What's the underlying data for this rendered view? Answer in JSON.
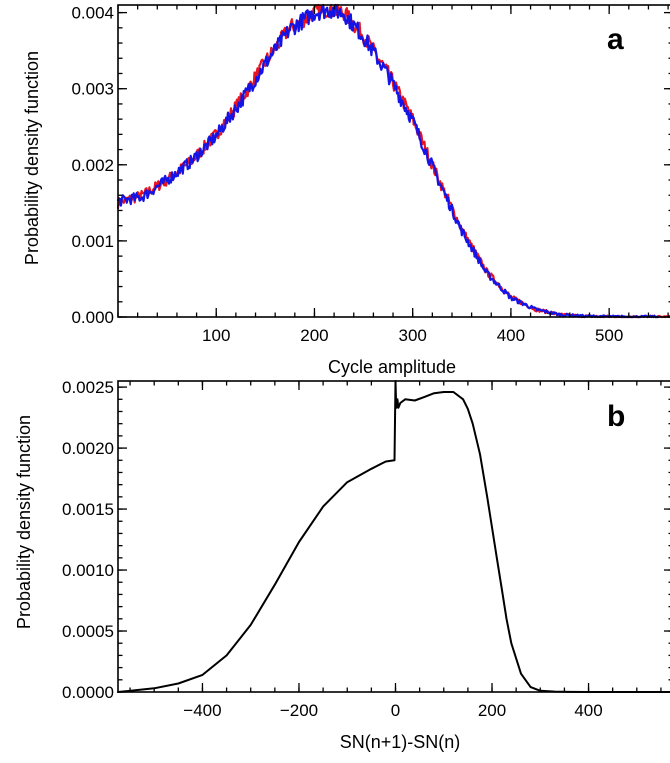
{
  "chart_data": [
    {
      "type": "line",
      "panel_label": "a",
      "title": "",
      "xlabel": "Cycle amplitude",
      "ylabel": "Probability density function",
      "xlim": [
        0,
        565
      ],
      "ylim": [
        0,
        0.0041
      ],
      "x_ticks": [
        100,
        200,
        300,
        400,
        500
      ],
      "x_tick_labels": [
        "100",
        "200",
        "300",
        "400",
        "500"
      ],
      "y_ticks": [
        0,
        0.001,
        0.002,
        0.003,
        0.004
      ],
      "y_tick_labels": [
        "0.000",
        "0.001",
        "0.002",
        "0.003",
        "0.004"
      ],
      "grid": false,
      "series": [
        {
          "color": "#e8141e",
          "x": [
            0,
            25,
            50,
            75,
            100,
            125,
            150,
            175,
            200,
            215,
            230,
            250,
            275,
            300,
            325,
            350,
            375,
            400,
            425,
            450,
            475,
            500,
            525,
            550,
            565
          ],
          "y": [
            0.0015,
            0.0016,
            0.0018,
            0.00205,
            0.0024,
            0.00285,
            0.00335,
            0.0038,
            0.004,
            0.00405,
            0.004,
            0.0037,
            0.0032,
            0.0026,
            0.00185,
            0.00115,
            0.0006,
            0.00026,
            0.0001,
            3e-05,
            1e-05,
            4e-06,
            2e-06,
            1e-06,
            5e-07
          ]
        },
        {
          "color": "#1414e6",
          "x": [
            0,
            25,
            50,
            75,
            100,
            125,
            150,
            175,
            200,
            215,
            230,
            250,
            275,
            300,
            325,
            350,
            375,
            400,
            425,
            450,
            475,
            500,
            525,
            550
          ],
          "y": [
            0.00152,
            0.00158,
            0.0018,
            0.00205,
            0.00238,
            0.00283,
            0.00333,
            0.00378,
            0.004,
            0.00404,
            0.00399,
            0.00368,
            0.00318,
            0.00258,
            0.00183,
            0.00113,
            0.00058,
            0.00025,
            0.0001,
            3e-05,
            1e-05,
            4e-06,
            2e-06,
            1e-06
          ]
        }
      ]
    },
    {
      "type": "line",
      "panel_label": "b",
      "title": "",
      "xlabel": "SN(n+1)-SN(n)",
      "ylabel": "Probability density function",
      "xlim": [
        -575,
        575
      ],
      "ylim": [
        0,
        0.00255
      ],
      "x_ticks": [
        -400,
        -200,
        0,
        200,
        400
      ],
      "x_tick_labels": [
        "−400",
        "−200",
        "0",
        "200",
        "400"
      ],
      "y_ticks": [
        0,
        0.0005,
        0.001,
        0.0015,
        0.002,
        0.0025
      ],
      "y_tick_labels": [
        "0.0000",
        "0.0005",
        "0.0010",
        "0.0015",
        "0.0020",
        "0.0025"
      ],
      "grid": false,
      "series": [
        {
          "color": "#000000",
          "x": [
            -575,
            -500,
            -450,
            -400,
            -350,
            -300,
            -250,
            -200,
            -150,
            -100,
            -50,
            -20,
            -2,
            0,
            1,
            2,
            4,
            6,
            10,
            20,
            40,
            60,
            80,
            100,
            120,
            140,
            150,
            160,
            175,
            190,
            200,
            210,
            220,
            230,
            240,
            260,
            280,
            300,
            330,
            360,
            400,
            575
          ],
          "y": [
            0.0,
            3e-05,
            7e-05,
            0.00014,
            0.0003,
            0.00055,
            0.00088,
            0.00123,
            0.00152,
            0.00172,
            0.00183,
            0.00189,
            0.0019,
            0.00255,
            0.0024,
            0.00233,
            0.0024,
            0.00233,
            0.00237,
            0.0024,
            0.00239,
            0.00242,
            0.00245,
            0.00246,
            0.00246,
            0.0024,
            0.00232,
            0.0022,
            0.00195,
            0.0016,
            0.00135,
            0.0011,
            0.00085,
            0.0006,
            0.0004,
            0.00015,
            4e-05,
            1e-05,
            3e-06,
            1e-06,
            0.0,
            0.0
          ]
        }
      ]
    }
  ]
}
